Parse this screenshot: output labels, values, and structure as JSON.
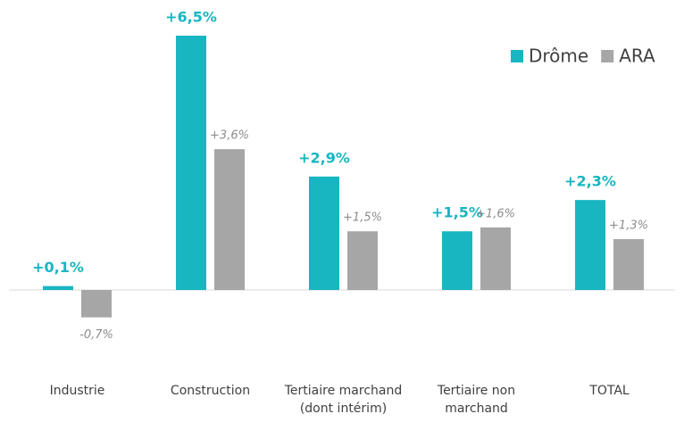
{
  "chart_data": {
    "type": "bar",
    "categories": [
      "Industrie",
      "Construction",
      "Tertiaire marchand (dont intérim)",
      "Tertiaire non marchand",
      "TOTAL"
    ],
    "series": [
      {
        "name": "Drôme",
        "color": "#17b6c1",
        "values": [
          0.1,
          6.5,
          2.9,
          1.5,
          2.3
        ],
        "value_labels": [
          "+0,1%",
          "+6,5%",
          "+2,9%",
          "+1,5%",
          "+2,3%"
        ]
      },
      {
        "name": "ARA",
        "color": "#a6a6a6",
        "values": [
          -0.7,
          3.6,
          1.5,
          1.6,
          1.3
        ],
        "value_labels": [
          "-0,7%",
          "+3,6%",
          "+1,5%",
          "+1,6%",
          "+1,3%"
        ]
      }
    ],
    "legend": "top-right"
  }
}
